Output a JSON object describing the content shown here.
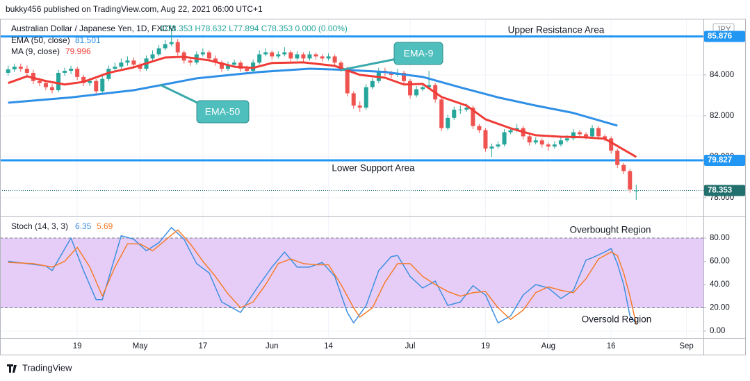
{
  "chart_data": {
    "type": "candlestick",
    "header": "bukky456 published on TradingView.com, Aug 22, 2021 06:00 UTC+1",
    "symbol": "Australian Dollar / Japanese Yen, 1D, FXCM",
    "quote": "O78.353 H78.632 L77.894 C78.353 0.000 (0.00%)",
    "currency": "JPY",
    "up_color": "#26a69a",
    "down_color": "#ef5350",
    "ohlc": [
      [
        84.1,
        84.45,
        83.95,
        84.27
      ],
      [
        84.27,
        84.55,
        84.15,
        84.4
      ],
      [
        84.4,
        84.55,
        84.15,
        84.3
      ],
      [
        84.3,
        84.45,
        83.95,
        84.1
      ],
      [
        84.1,
        84.25,
        83.55,
        83.7
      ],
      [
        83.7,
        83.85,
        83.45,
        83.6
      ],
      [
        83.6,
        83.75,
        83.25,
        83.4
      ],
      [
        83.4,
        83.55,
        83.1,
        83.25
      ],
      [
        83.25,
        84.25,
        83.15,
        84.1
      ],
      [
        84.1,
        84.35,
        83.95,
        84.2
      ],
      [
        84.2,
        84.45,
        84.05,
        84.3
      ],
      [
        84.3,
        84.4,
        83.75,
        83.9
      ],
      [
        83.9,
        84.0,
        83.45,
        83.6
      ],
      [
        83.6,
        83.85,
        83.45,
        83.7
      ],
      [
        83.7,
        83.8,
        83.05,
        83.2
      ],
      [
        83.2,
        83.95,
        83.1,
        83.8
      ],
      [
        83.8,
        84.45,
        83.7,
        84.3
      ],
      [
        84.3,
        84.6,
        84.15,
        84.4
      ],
      [
        84.4,
        84.8,
        84.3,
        84.6
      ],
      [
        84.6,
        84.9,
        84.45,
        84.7
      ],
      [
        84.7,
        84.85,
        84.35,
        84.5
      ],
      [
        84.5,
        84.6,
        84.15,
        84.3
      ],
      [
        84.3,
        84.95,
        84.2,
        84.8
      ],
      [
        84.8,
        85.2,
        84.7,
        85.0
      ],
      [
        85.0,
        85.45,
        84.9,
        85.3
      ],
      [
        85.3,
        85.7,
        85.2,
        85.5
      ],
      [
        85.5,
        86.3,
        85.4,
        85.6
      ],
      [
        85.6,
        85.75,
        84.95,
        85.1
      ],
      [
        85.1,
        85.2,
        84.55,
        84.7
      ],
      [
        84.7,
        84.85,
        84.45,
        84.6
      ],
      [
        84.6,
        85.15,
        84.5,
        85.0
      ],
      [
        85.0,
        85.3,
        84.9,
        85.1
      ],
      [
        85.1,
        85.2,
        84.65,
        84.8
      ],
      [
        84.8,
        84.95,
        84.45,
        84.6
      ],
      [
        84.6,
        84.7,
        84.15,
        84.3
      ],
      [
        84.3,
        84.65,
        84.2,
        84.5
      ],
      [
        84.5,
        84.75,
        84.4,
        84.6
      ],
      [
        84.6,
        84.7,
        84.15,
        84.3
      ],
      [
        84.3,
        84.45,
        84.05,
        84.2
      ],
      [
        84.2,
        84.75,
        84.1,
        84.6
      ],
      [
        84.6,
        85.2,
        84.5,
        85.0
      ],
      [
        85.0,
        85.3,
        84.9,
        85.1
      ],
      [
        85.1,
        85.2,
        84.75,
        84.9
      ],
      [
        84.9,
        85.15,
        84.8,
        85.0
      ],
      [
        85.0,
        85.35,
        84.9,
        85.1
      ],
      [
        85.1,
        85.2,
        84.65,
        84.8
      ],
      [
        84.8,
        85.15,
        84.7,
        85.0
      ],
      [
        85.0,
        85.1,
        84.65,
        84.8
      ],
      [
        84.8,
        85.15,
        84.7,
        85.0
      ],
      [
        85.0,
        85.1,
        84.75,
        84.9
      ],
      [
        84.9,
        85.0,
        84.65,
        84.8
      ],
      [
        84.8,
        85.05,
        84.7,
        84.9
      ],
      [
        84.9,
        85.0,
        84.45,
        84.6
      ],
      [
        84.6,
        84.7,
        84.15,
        84.3
      ],
      [
        84.3,
        84.4,
        82.95,
        83.1
      ],
      [
        83.1,
        83.2,
        82.35,
        82.5
      ],
      [
        82.5,
        82.7,
        82.2,
        82.4
      ],
      [
        82.4,
        83.55,
        82.3,
        83.4
      ],
      [
        83.4,
        83.85,
        83.3,
        83.7
      ],
      [
        83.7,
        84.35,
        83.6,
        84.2
      ],
      [
        84.2,
        84.35,
        83.95,
        84.1
      ],
      [
        84.1,
        84.2,
        83.85,
        84.0
      ],
      [
        84.0,
        84.3,
        83.9,
        84.1
      ],
      [
        84.1,
        84.2,
        83.55,
        83.7
      ],
      [
        83.7,
        83.8,
        82.85,
        83.0
      ],
      [
        83.0,
        83.45,
        82.9,
        83.3
      ],
      [
        83.3,
        83.55,
        83.2,
        83.4
      ],
      [
        83.4,
        84.2,
        83.3,
        83.5
      ],
      [
        83.5,
        83.6,
        82.65,
        82.8
      ],
      [
        82.8,
        82.9,
        81.25,
        81.4
      ],
      [
        81.4,
        82.05,
        81.3,
        81.9
      ],
      [
        81.9,
        82.45,
        81.8,
        82.3
      ],
      [
        82.3,
        82.5,
        82.1,
        82.3
      ],
      [
        82.3,
        82.6,
        82.2,
        82.4
      ],
      [
        82.4,
        82.5,
        81.35,
        81.5
      ],
      [
        81.5,
        81.6,
        81.15,
        81.3
      ],
      [
        81.3,
        81.4,
        80.25,
        80.4
      ],
      [
        80.4,
        80.65,
        80.0,
        80.5
      ],
      [
        80.5,
        80.75,
        80.4,
        80.6
      ],
      [
        80.6,
        81.35,
        80.5,
        81.2
      ],
      [
        81.2,
        81.45,
        81.1,
        81.3
      ],
      [
        81.3,
        81.6,
        81.2,
        81.4
      ],
      [
        81.4,
        81.5,
        80.85,
        81.0
      ],
      [
        81.0,
        81.1,
        80.55,
        80.7
      ],
      [
        80.7,
        80.95,
        80.6,
        80.8
      ],
      [
        80.8,
        80.9,
        80.45,
        80.6
      ],
      [
        80.6,
        80.7,
        80.3,
        80.5
      ],
      [
        80.5,
        80.75,
        80.4,
        80.6
      ],
      [
        80.6,
        80.95,
        80.5,
        80.8
      ],
      [
        80.8,
        81.05,
        80.7,
        80.9
      ],
      [
        80.9,
        81.35,
        80.8,
        81.2
      ],
      [
        81.2,
        81.3,
        80.95,
        81.1
      ],
      [
        81.1,
        81.2,
        80.85,
        81.0
      ],
      [
        81.0,
        81.55,
        80.9,
        81.4
      ],
      [
        81.4,
        81.5,
        80.85,
        81.0
      ],
      [
        81.0,
        81.1,
        80.75,
        80.9
      ],
      [
        80.9,
        81.0,
        80.15,
        80.3
      ],
      [
        80.3,
        80.4,
        79.45,
        79.6
      ],
      [
        79.6,
        79.7,
        79.15,
        79.3
      ],
      [
        79.3,
        79.4,
        78.25,
        78.4
      ],
      [
        78.353,
        78.632,
        77.894,
        78.353
      ]
    ],
    "xlim": [
      -1.3,
      110.7
    ],
    "xticks": [
      {
        "value": 11,
        "label": "19"
      },
      {
        "value": 21,
        "label": "May"
      },
      {
        "value": 31,
        "label": "17"
      },
      {
        "value": 42,
        "label": "Jun"
      },
      {
        "value": 51,
        "label": "14"
      },
      {
        "value": 64,
        "label": "Jul"
      },
      {
        "value": 76,
        "label": "19"
      },
      {
        "value": 86,
        "label": "Aug"
      },
      {
        "value": 96,
        "label": "16"
      },
      {
        "value": 108,
        "label": "Sep"
      }
    ],
    "ylim": [
      77.15,
      86.64
    ],
    "yticks": [
      {
        "value": 84,
        "label": "84.000"
      },
      {
        "value": 82,
        "label": "82.000"
      },
      {
        "value": 80,
        "label": "80.000"
      },
      {
        "value": 78,
        "label": "78.000"
      }
    ],
    "grid": true,
    "indicators": [
      {
        "name": "EMA (50, close)",
        "last": 81.501,
        "color": "#2e8fe6",
        "x": [
          0,
          10,
          20,
          30,
          40,
          48,
          54,
          60,
          66,
          72,
          78,
          84,
          90,
          97
        ],
        "values": [
          82.64,
          82.9,
          83.25,
          83.83,
          84.14,
          84.3,
          84.24,
          84.14,
          83.9,
          83.39,
          82.9,
          82.5,
          82.14,
          81.52
        ]
      },
      {
        "name": "MA (9, close)",
        "last": 79.996,
        "color": "#ef3b36",
        "x": [
          0,
          3,
          6,
          9,
          12,
          16,
          20,
          25,
          28,
          32,
          36,
          39,
          42,
          47,
          52,
          56,
          60,
          63,
          66,
          69,
          73,
          76,
          80,
          84,
          88,
          92,
          95,
          100
        ],
        "values": [
          83.6,
          83.93,
          83.7,
          83.53,
          83.66,
          84.1,
          84.37,
          84.85,
          84.88,
          84.71,
          84.4,
          84.34,
          84.58,
          84.61,
          84.44,
          84.0,
          83.86,
          83.53,
          83.56,
          82.92,
          82.5,
          81.83,
          81.39,
          81.05,
          80.98,
          80.95,
          80.88,
          79.996
        ]
      }
    ],
    "levels": [
      {
        "label": "Upper Resistance Area",
        "value": 85.876,
        "color": "#2196f3"
      },
      {
        "label": "Lower Support Area",
        "value": 79.827,
        "color": "#2196f3"
      }
    ],
    "last_price": 78.353,
    "annotations": [
      "EMA-9",
      "EMA-50"
    ],
    "stoch": {
      "name": "Stoch (14, 3, 3)",
      "ylim": [
        -5.97,
        98.5
      ],
      "yticks": [
        {
          "value": 80,
          "label": "80.00"
        },
        {
          "value": 60,
          "label": "60.00"
        },
        {
          "value": 40,
          "label": "40.00"
        },
        {
          "value": 20,
          "label": "20.00"
        },
        {
          "value": 0,
          "label": "0.00"
        }
      ],
      "band": [
        20,
        80
      ],
      "band_color": "#e6cdf8",
      "annotations": [
        "Overbought Region",
        "Oversold Region"
      ],
      "series": [
        {
          "last": 6.35,
          "color": "#3d8fe0",
          "x": [
            0,
            3,
            6,
            7,
            10,
            12,
            14,
            15,
            18,
            20,
            22,
            24,
            26,
            28,
            30,
            32,
            34,
            37,
            40,
            42,
            44,
            46,
            48,
            50,
            52,
            54,
            55,
            57,
            59,
            61,
            62,
            64,
            66,
            68,
            70,
            72,
            74,
            76,
            78,
            80,
            82,
            84,
            86,
            88,
            90,
            92,
            93,
            95,
            96,
            97,
            98,
            99,
            100
          ],
          "values": [
            60,
            58,
            56,
            52,
            80,
            52,
            27,
            27,
            82,
            79,
            69,
            76,
            89,
            79,
            58,
            50,
            25,
            16,
            40,
            55,
            68,
            55,
            55,
            59,
            47,
            16,
            7,
            22,
            52,
            64,
            65,
            47,
            37,
            43,
            22,
            25,
            39,
            31,
            7,
            13,
            31,
            40,
            37,
            28,
            35,
            61,
            63,
            68,
            71,
            58,
            40,
            13,
            6.35
          ]
        },
        {
          "last": 5.69,
          "color": "#f57c2a",
          "x": [
            0,
            4,
            7,
            9,
            11,
            13,
            15,
            17,
            19,
            21,
            23,
            25,
            27,
            29,
            31,
            33,
            35,
            37,
            39,
            41,
            43,
            45,
            47,
            49,
            51,
            53,
            55,
            56,
            58,
            60,
            62,
            64,
            66,
            68,
            70,
            72,
            74,
            76,
            78,
            80,
            82,
            84,
            86,
            88,
            90,
            92,
            94,
            96,
            97,
            98,
            99,
            100
          ],
          "values": [
            59,
            58,
            55,
            60,
            72,
            55,
            30,
            55,
            75,
            75,
            69,
            78,
            87,
            75,
            60,
            47,
            32,
            20,
            25,
            40,
            58,
            62,
            58,
            57,
            57,
            40,
            20,
            12,
            20,
            42,
            58,
            58,
            47,
            40,
            34,
            30,
            33,
            34,
            20,
            10,
            18,
            33,
            38,
            35,
            33,
            45,
            62,
            68,
            65,
            50,
            30,
            5.69
          ]
        }
      ]
    },
    "footer": "TradingView"
  }
}
